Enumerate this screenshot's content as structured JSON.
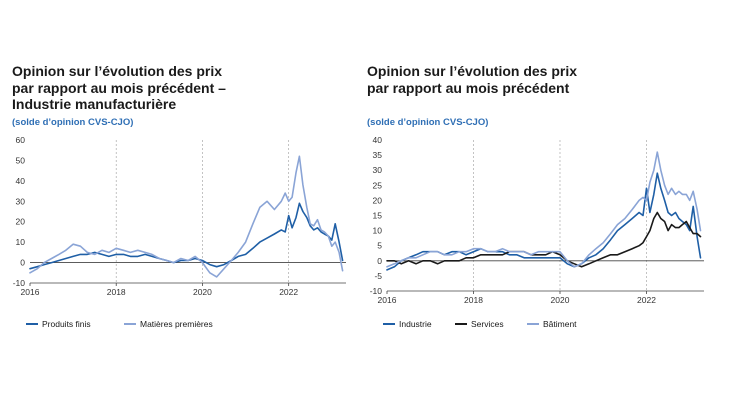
{
  "chart_data": [
    {
      "type": "line",
      "title_lines": [
        "Opinion sur l’évolution des prix",
        "par rapport au mois précédent –",
        "Industrie manufacturière"
      ],
      "subtitle": "(solde d’opinion CVS-CJO)",
      "xlabel": "",
      "ylabel": "",
      "xlim": [
        2016,
        2023.33
      ],
      "ylim": [
        -10,
        60
      ],
      "y_ticks": [
        -10,
        0,
        10,
        20,
        30,
        40,
        50,
        60
      ],
      "x_ticks": [
        2016,
        2018,
        2020,
        2022
      ],
      "grid": "vertical dashed at year ticks",
      "series": [
        {
          "name": "Produits finis",
          "color": "#1f5fa6",
          "x": [
            2016,
            2016.17,
            2016.33,
            2016.5,
            2016.67,
            2016.83,
            2017,
            2017.17,
            2017.33,
            2017.5,
            2017.67,
            2017.83,
            2018,
            2018.17,
            2018.33,
            2018.5,
            2018.67,
            2018.83,
            2019,
            2019.17,
            2019.33,
            2019.5,
            2019.67,
            2019.83,
            2020,
            2020.17,
            2020.33,
            2020.5,
            2020.67,
            2020.83,
            2021,
            2021.17,
            2021.33,
            2021.5,
            2021.67,
            2021.83,
            2021.92,
            2022,
            2022.08,
            2022.17,
            2022.25,
            2022.33,
            2022.42,
            2022.5,
            2022.58,
            2022.67,
            2022.75,
            2022.83,
            2022.92,
            2023,
            2023.08,
            2023.17,
            2023.25
          ],
          "values": [
            -3,
            -2,
            -1,
            0,
            1,
            2,
            3,
            4,
            4,
            5,
            4,
            3,
            4,
            4,
            3,
            3,
            4,
            3,
            2,
            1,
            0,
            1,
            1,
            2,
            1,
            -1,
            -2,
            -1,
            1,
            3,
            4,
            7,
            10,
            12,
            14,
            16,
            15,
            23,
            17,
            22,
            29,
            25,
            22,
            18,
            16,
            17,
            15,
            14,
            13,
            11,
            19,
            10,
            1
          ]
        },
        {
          "name": "Matières premières",
          "color": "#8aa4d6",
          "x": [
            2016,
            2016.17,
            2016.33,
            2016.5,
            2016.67,
            2016.83,
            2017,
            2017.17,
            2017.33,
            2017.5,
            2017.67,
            2017.83,
            2018,
            2018.17,
            2018.33,
            2018.5,
            2018.67,
            2018.83,
            2019,
            2019.17,
            2019.33,
            2019.5,
            2019.67,
            2019.83,
            2020,
            2020.17,
            2020.33,
            2020.5,
            2020.67,
            2020.83,
            2021,
            2021.17,
            2021.33,
            2021.5,
            2021.67,
            2021.83,
            2021.92,
            2022,
            2022.08,
            2022.17,
            2022.25,
            2022.33,
            2022.42,
            2022.5,
            2022.58,
            2022.67,
            2022.75,
            2022.83,
            2022.92,
            2023,
            2023.08,
            2023.17,
            2023.25
          ],
          "values": [
            -5,
            -3,
            0,
            2,
            4,
            6,
            9,
            8,
            5,
            4,
            6,
            5,
            7,
            6,
            5,
            6,
            5,
            4,
            2,
            1,
            0,
            2,
            1,
            3,
            0,
            -5,
            -7,
            -3,
            1,
            5,
            10,
            19,
            27,
            30,
            26,
            30,
            34,
            30,
            32,
            44,
            52,
            38,
            27,
            19,
            18,
            21,
            16,
            15,
            13,
            8,
            10,
            5,
            -4
          ]
        }
      ]
    },
    {
      "type": "line",
      "title_lines": [
        "Opinion sur l’évolution des prix",
        "par rapport au mois précédent"
      ],
      "subtitle": "(solde d’opinion CVS-CJO)",
      "xlabel": "",
      "ylabel": "",
      "xlim": [
        2016,
        2023.33
      ],
      "ylim": [
        -10,
        40
      ],
      "y_ticks": [
        -10,
        -5,
        0,
        5,
        10,
        15,
        20,
        25,
        30,
        35,
        40
      ],
      "x_ticks": [
        2016,
        2018,
        2020,
        2022
      ],
      "grid": "vertical dashed at year ticks",
      "series": [
        {
          "name": "Industrie",
          "color": "#1f5fa6",
          "x": [
            2016,
            2016.17,
            2016.33,
            2016.5,
            2016.67,
            2016.83,
            2017,
            2017.17,
            2017.33,
            2017.5,
            2017.67,
            2017.83,
            2018,
            2018.17,
            2018.33,
            2018.5,
            2018.67,
            2018.83,
            2019,
            2019.17,
            2019.33,
            2019.5,
            2019.67,
            2019.83,
            2020,
            2020.17,
            2020.33,
            2020.5,
            2020.67,
            2020.83,
            2021,
            2021.17,
            2021.33,
            2021.5,
            2021.67,
            2021.83,
            2021.92,
            2022,
            2022.08,
            2022.17,
            2022.25,
            2022.33,
            2022.42,
            2022.5,
            2022.58,
            2022.67,
            2022.75,
            2022.83,
            2022.92,
            2023,
            2023.08,
            2023.17,
            2023.25
          ],
          "values": [
            -3,
            -2,
            0,
            1,
            2,
            3,
            3,
            3,
            2,
            3,
            3,
            2,
            3,
            4,
            3,
            3,
            3,
            2,
            2,
            1,
            1,
            1,
            1,
            1,
            1,
            -1,
            -2,
            -1,
            1,
            2,
            4,
            7,
            10,
            12,
            14,
            16,
            15,
            24,
            16,
            22,
            29,
            24,
            20,
            16,
            15,
            16,
            14,
            13,
            12,
            10,
            18,
            8,
            1
          ]
        },
        {
          "name": "Services",
          "color": "#1a1a1a",
          "x": [
            2016,
            2016.17,
            2016.33,
            2016.5,
            2016.67,
            2016.83,
            2017,
            2017.17,
            2017.33,
            2017.5,
            2017.67,
            2017.83,
            2018,
            2018.17,
            2018.33,
            2018.5,
            2018.67,
            2018.83,
            2019,
            2019.17,
            2019.33,
            2019.5,
            2019.67,
            2019.83,
            2020,
            2020.17,
            2020.33,
            2020.5,
            2020.67,
            2020.83,
            2021,
            2021.17,
            2021.33,
            2021.5,
            2021.67,
            2021.83,
            2021.92,
            2022,
            2022.08,
            2022.17,
            2022.25,
            2022.33,
            2022.42,
            2022.5,
            2022.58,
            2022.67,
            2022.75,
            2022.83,
            2022.92,
            2023,
            2023.08,
            2023.17,
            2023.25
          ],
          "values": [
            0,
            0,
            -1,
            0,
            -1,
            0,
            0,
            -1,
            0,
            0,
            0,
            1,
            1,
            2,
            2,
            2,
            2,
            3,
            3,
            3,
            2,
            2,
            2,
            3,
            2,
            0,
            -1,
            -2,
            -1,
            0,
            1,
            2,
            2,
            3,
            4,
            5,
            6,
            8,
            10,
            14,
            16,
            14,
            13,
            10,
            12,
            11,
            11,
            12,
            13,
            11,
            9,
            9,
            8
          ]
        },
        {
          "name": "Bâtiment",
          "color": "#8aa4d6",
          "x": [
            2016,
            2016.17,
            2016.33,
            2016.5,
            2016.67,
            2016.83,
            2017,
            2017.17,
            2017.33,
            2017.5,
            2017.67,
            2017.83,
            2018,
            2018.17,
            2018.33,
            2018.5,
            2018.67,
            2018.83,
            2019,
            2019.17,
            2019.33,
            2019.5,
            2019.67,
            2019.83,
            2020,
            2020.17,
            2020.33,
            2020.5,
            2020.67,
            2020.83,
            2021,
            2021.17,
            2021.33,
            2021.5,
            2021.67,
            2021.83,
            2021.92,
            2022,
            2022.08,
            2022.17,
            2022.25,
            2022.33,
            2022.42,
            2022.5,
            2022.58,
            2022.67,
            2022.75,
            2022.83,
            2022.92,
            2023,
            2023.08,
            2023.17,
            2023.25
          ],
          "values": [
            -2,
            -1,
            0,
            1,
            1,
            2,
            3,
            3,
            2,
            2,
            3,
            3,
            4,
            4,
            3,
            3,
            4,
            3,
            3,
            3,
            2,
            3,
            3,
            3,
            3,
            0,
            -2,
            -1,
            2,
            4,
            6,
            9,
            12,
            14,
            17,
            20,
            21,
            20,
            26,
            30,
            36,
            30,
            25,
            22,
            24,
            22,
            23,
            22,
            22,
            20,
            23,
            17,
            10
          ]
        }
      ]
    }
  ]
}
